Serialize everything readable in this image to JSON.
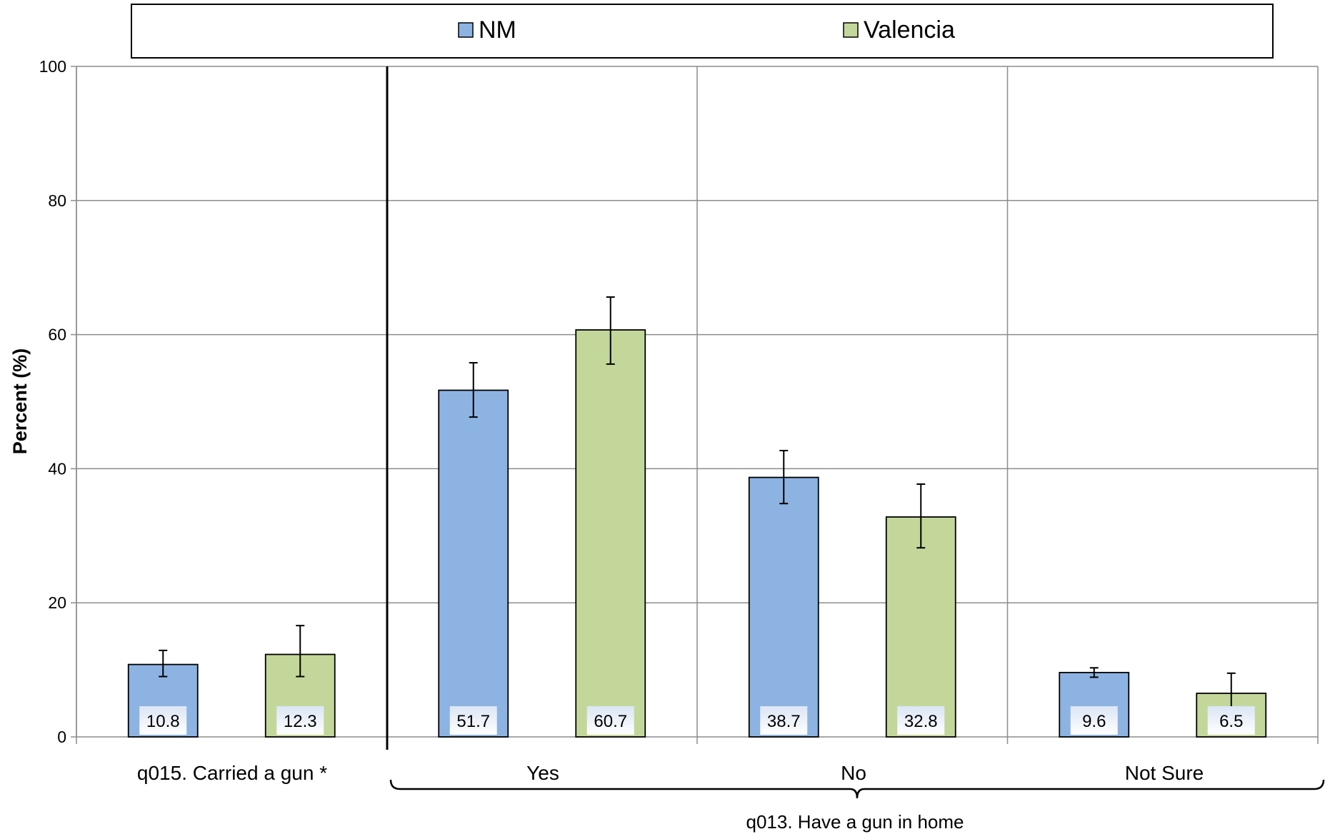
{
  "chart_data": {
    "type": "bar",
    "title": "",
    "ylabel": "Percent (%)",
    "ylim": [
      0,
      100
    ],
    "yticks": [
      0,
      20,
      40,
      60,
      80,
      100
    ],
    "grid": true,
    "legend_position": "top",
    "categories": [
      "q015. Carried a gun *",
      "Yes",
      "No",
      "Not Sure"
    ],
    "group_label": "q013. Have a gun in home",
    "series": [
      {
        "name": "NM",
        "color": "#8db3e2",
        "values": [
          10.8,
          51.7,
          38.7,
          9.6
        ],
        "labels": [
          "10.8",
          "51.7",
          "38.7",
          "9.6"
        ],
        "ci_low": [
          9.0,
          47.7,
          34.8,
          8.9
        ],
        "ci_high": [
          12.9,
          55.8,
          42.7,
          10.3
        ]
      },
      {
        "name": "Valencia",
        "color": "#c4d79b",
        "values": [
          12.3,
          60.7,
          32.8,
          6.5
        ],
        "labels": [
          "12.3",
          "60.7",
          "32.8",
          "6.5"
        ],
        "ci_low": [
          9.0,
          55.6,
          28.2,
          4.4
        ],
        "ci_high": [
          16.6,
          65.6,
          37.7,
          9.5
        ]
      }
    ]
  }
}
